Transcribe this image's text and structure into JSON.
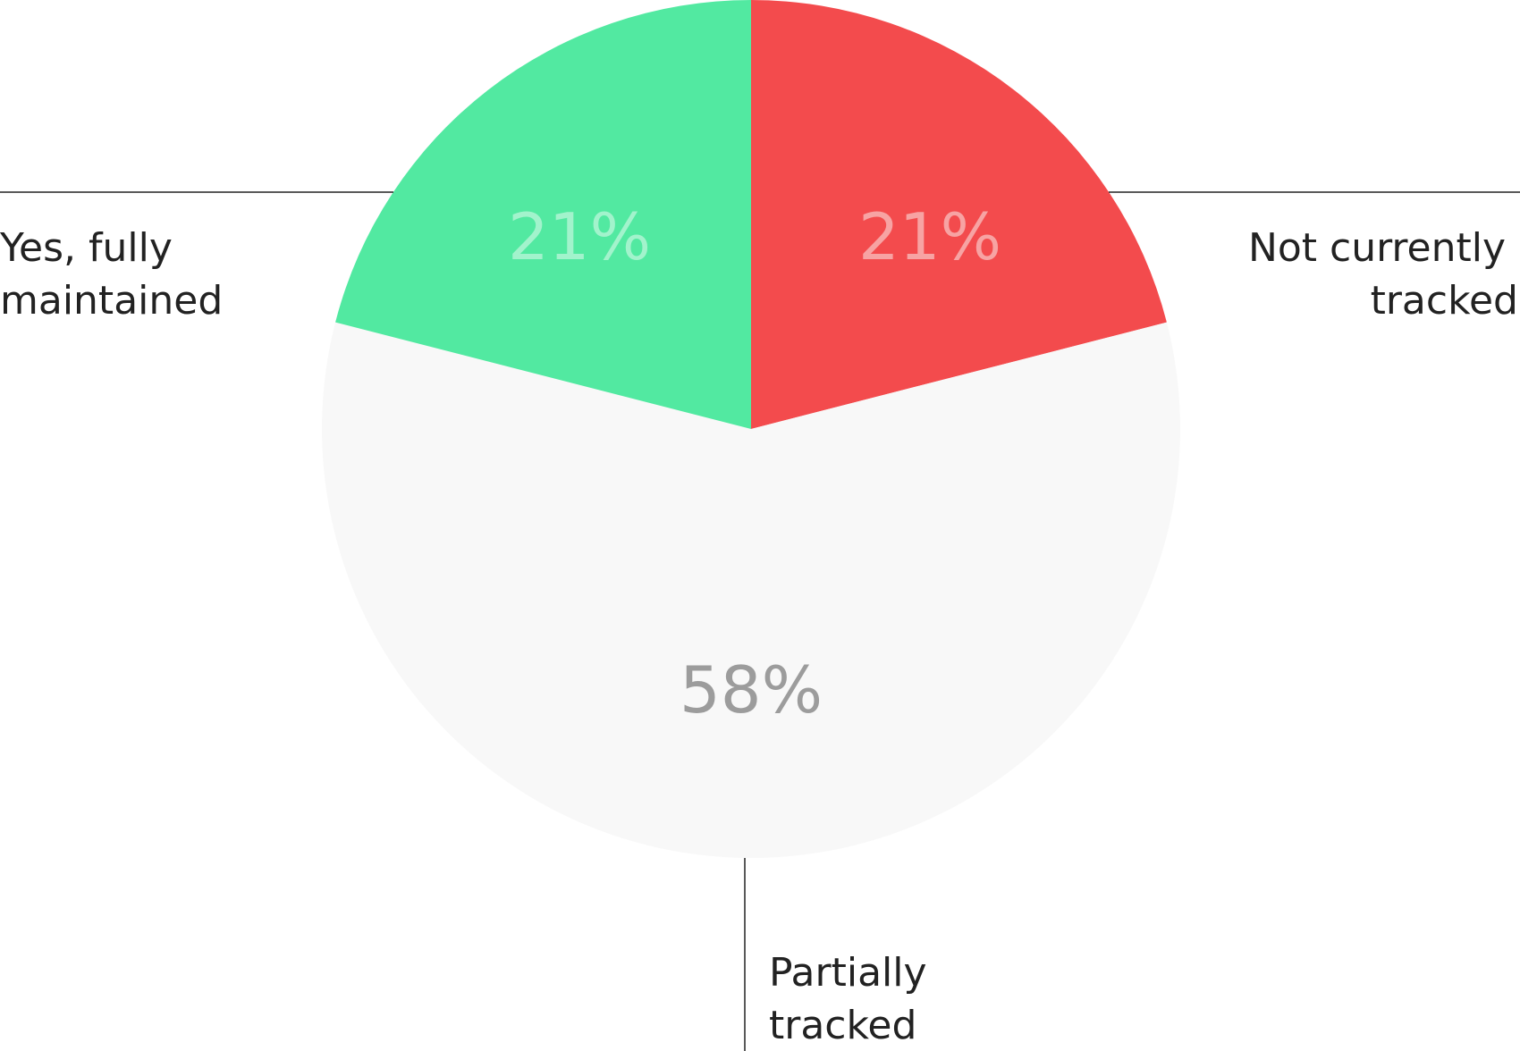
{
  "chart_data": {
    "type": "pie",
    "start_angle_deg": 0,
    "direction": "clockwise",
    "slices": [
      {
        "key": "not_tracked",
        "label_lines": [
          "Not currently",
          "tracked"
        ],
        "value": 21,
        "value_label": "21%",
        "color": "#f34b4d",
        "text_color": "#f7a3a3"
      },
      {
        "key": "partial",
        "label_lines": [
          "Partially",
          "tracked"
        ],
        "value": 58,
        "value_label": "58%",
        "color": "#f8f8f8",
        "text_color": "#9c9c9c"
      },
      {
        "key": "fully",
        "label_lines": [
          "Yes, fully",
          "maintained"
        ],
        "value": 21,
        "value_label": "21%",
        "color": "#52e9a1",
        "text_color": "#a2f3cc"
      }
    ]
  }
}
